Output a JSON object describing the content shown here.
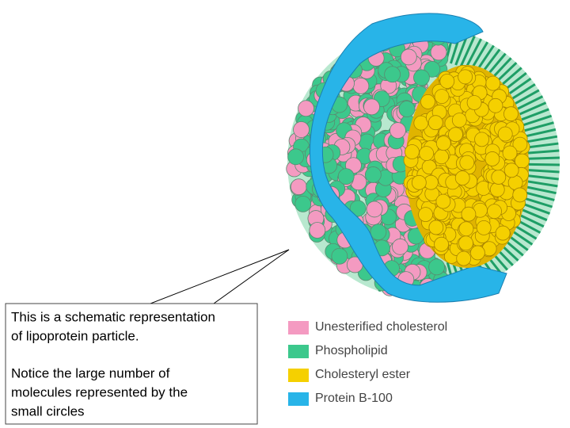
{
  "callout": {
    "paragraphs": [
      {
        "lines": [
          "This is a schematic representation",
          "of lipoprotein  particle."
        ]
      },
      {
        "lines": [
          "Notice the large number of",
          "molecules represented by the",
          "small circles"
        ]
      }
    ]
  },
  "legend": {
    "items": [
      {
        "label": "Unesterified cholesterol",
        "color": "#f49ac1"
      },
      {
        "label": "Phospholipid",
        "color": "#3cc88c"
      },
      {
        "label": "Cholesteryl ester",
        "color": "#f5d000"
      },
      {
        "label": "Protein B-100",
        "color": "#28b4e8"
      }
    ]
  }
}
